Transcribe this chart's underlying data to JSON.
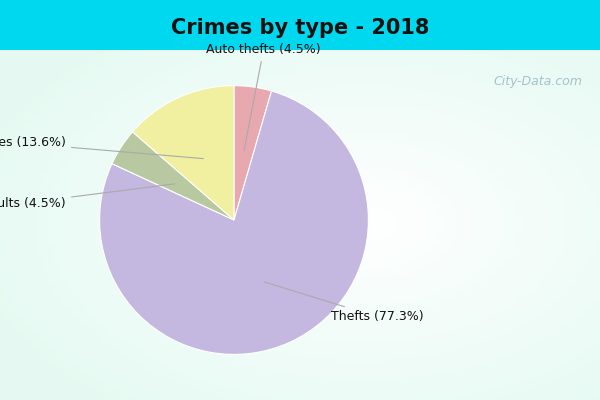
{
  "title": "Crimes by type - 2018",
  "slices": [
    {
      "label": "Thefts",
      "pct": 77.3,
      "color": "#c4b8e0"
    },
    {
      "label": "Auto thefts",
      "pct": 4.5,
      "color": "#e8a8b0"
    },
    {
      "label": "Burglaries",
      "pct": 13.6,
      "color": "#f0f0a0"
    },
    {
      "label": "Assaults",
      "pct": 4.5,
      "color": "#b8c8a0"
    }
  ],
  "background_top": "#00d8f0",
  "title_fontsize": 15,
  "label_fontsize": 9,
  "watermark": "City-Data.com",
  "startangle": 90
}
